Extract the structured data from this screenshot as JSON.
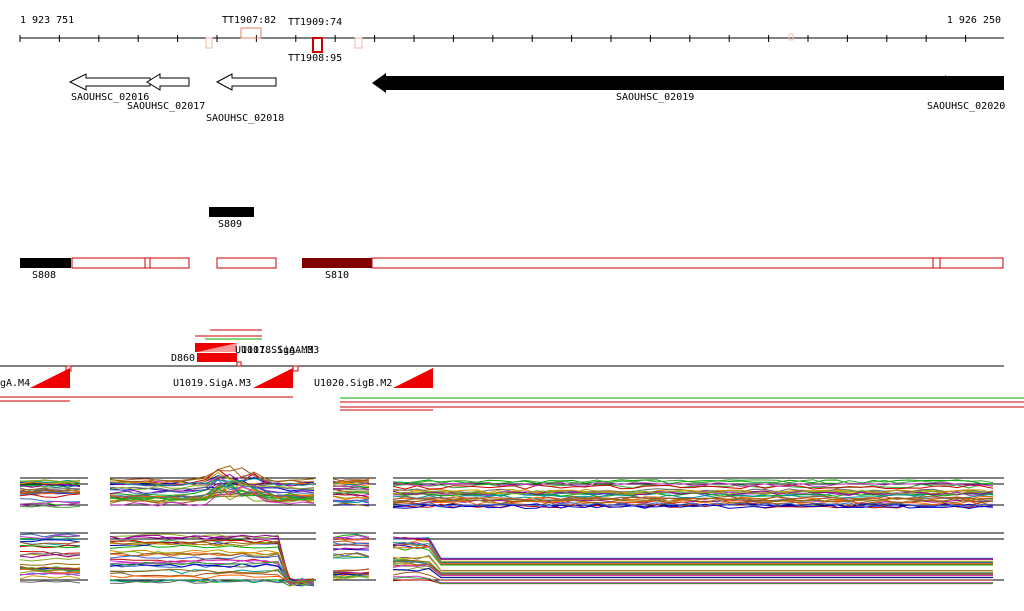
{
  "axis": {
    "start_label": "1 923 751",
    "end_label": "1 926 250"
  },
  "terminators": [
    {
      "label": "TT1907:82"
    },
    {
      "label": "TT1909:74"
    },
    {
      "label": "TT1908:95"
    }
  ],
  "genes": [
    {
      "label": "SAOUHSC_02016"
    },
    {
      "label": "SAOUHSC_02017"
    },
    {
      "label": "SAOUHSC_02018"
    },
    {
      "label": "SAOUHSC_02019"
    },
    {
      "label": "SAOUHSC_02020"
    }
  ],
  "segments": [
    {
      "label": "S809"
    },
    {
      "label": "S808"
    },
    {
      "label": "S810"
    }
  ],
  "promoters": [
    {
      "label": "D860"
    },
    {
      "label": "U1017.SigA.M3"
    },
    {
      "label": "U1018.SigA.M3"
    },
    {
      "label": "gA.M4"
    },
    {
      "label": "U1019.SigA.M3"
    },
    {
      "label": "U1020.SigB.M2"
    }
  ]
}
